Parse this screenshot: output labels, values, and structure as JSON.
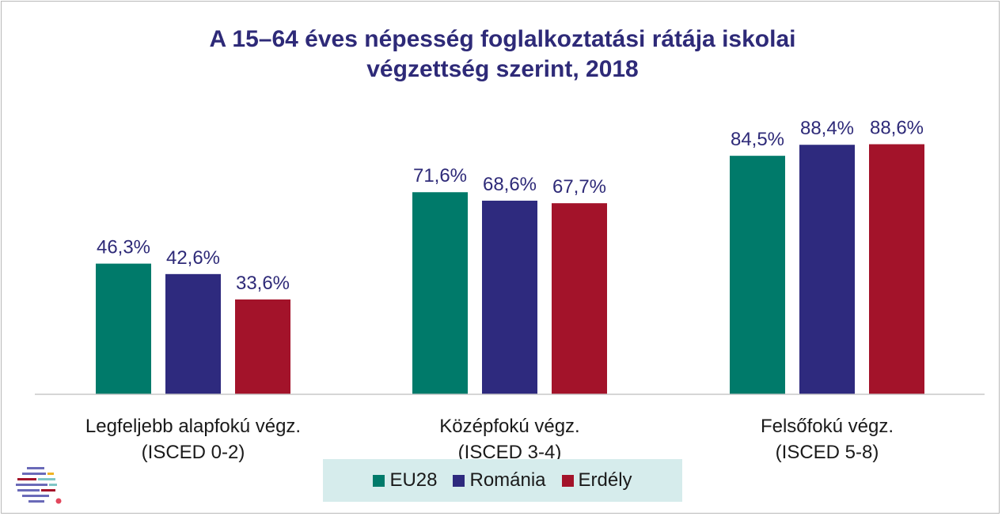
{
  "chart_data": {
    "type": "bar",
    "title": [
      "A 15–64 éves népesség foglalkoztatási rátája iskolai",
      "végzettség szerint, 2018"
    ],
    "categories": [
      [
        "Legfeljebb alapfokú végz.",
        "(ISCED 0-2)"
      ],
      [
        "Középfokú végz.",
        "(ISCED 3-4)"
      ],
      [
        "Felsőfokú végz.",
        "(ISCED 5-8)"
      ]
    ],
    "series": [
      {
        "name": "EU28",
        "color": "#007a6a",
        "values": [
          46.3,
          71.6,
          84.5
        ],
        "labels": [
          "46,3%",
          "71,6%",
          "84,5%"
        ]
      },
      {
        "name": "Románia",
        "color": "#2e2a7e",
        "values": [
          42.6,
          68.6,
          88.4
        ],
        "labels": [
          "42,6%",
          "68,6%",
          "88,4%"
        ]
      },
      {
        "name": "Erdély",
        "color": "#a3132a",
        "values": [
          33.6,
          67.7,
          88.6
        ],
        "labels": [
          "33,6%",
          "67,7%",
          "88,6%"
        ]
      }
    ],
    "ylim": [
      0,
      100
    ],
    "grid": false,
    "legend_position": "bottom-center"
  },
  "logo": {
    "name": "logo-icon",
    "colors": [
      "#6a6ab8",
      "#a3132a",
      "#f0b323",
      "#7fc6c6"
    ]
  }
}
